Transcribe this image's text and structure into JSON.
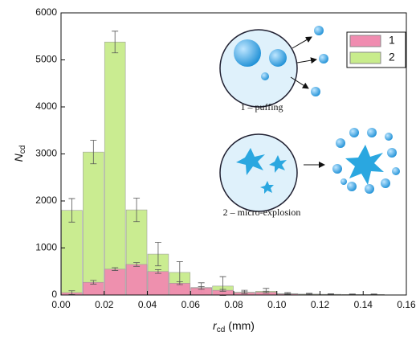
{
  "chart_data": {
    "type": "histogram",
    "bins": [
      0,
      0.01,
      0.02,
      0.03,
      0.04,
      0.05,
      0.06,
      0.07,
      0.08,
      0.09,
      0.1,
      0.11,
      0.12,
      0.13,
      0.14,
      0.15
    ],
    "series": [
      {
        "name": "2",
        "color": "#c8ec8c",
        "values": [
          1800,
          3040,
          5380,
          1810,
          870,
          480,
          160,
          190,
          60,
          80,
          30,
          20,
          15,
          10,
          10
        ],
        "errors": [
          250,
          250,
          230,
          250,
          250,
          230,
          100,
          200,
          40,
          60,
          20,
          15,
          10,
          10,
          10
        ]
      },
      {
        "name": "1",
        "color": "#f08cb0",
        "values": [
          50,
          270,
          550,
          650,
          500,
          250,
          150,
          100,
          50,
          60,
          20,
          10,
          5,
          5,
          5
        ],
        "errors": [
          40,
          40,
          30,
          40,
          40,
          30,
          30,
          20,
          20,
          20,
          10,
          10,
          5,
          5,
          5
        ]
      }
    ],
    "xlim": [
      0,
      0.16
    ],
    "xticks": [
      {
        "value": 0,
        "label": "0.00"
      },
      {
        "value": 0.02,
        "label": "0.02"
      },
      {
        "value": 0.04,
        "label": "0.04"
      },
      {
        "value": 0.06,
        "label": "0.06"
      },
      {
        "value": 0.08,
        "label": "0.08"
      },
      {
        "value": 0.1,
        "label": "0.10"
      },
      {
        "value": 0.12,
        "label": "0.12"
      },
      {
        "value": 0.14,
        "label": "0.14"
      },
      {
        "value": 0.16,
        "label": "0.16"
      }
    ],
    "ylim": [
      0,
      6000
    ],
    "yticks": [
      0,
      1000,
      2000,
      3000,
      4000,
      5000,
      6000
    ],
    "x_label": [
      "r",
      "cd",
      "(mm)"
    ],
    "y_label": [
      "N",
      "cd"
    ],
    "legend_position": "upper right",
    "annotations": [
      "1 – puffing",
      "2 – micro-explosion"
    ]
  }
}
